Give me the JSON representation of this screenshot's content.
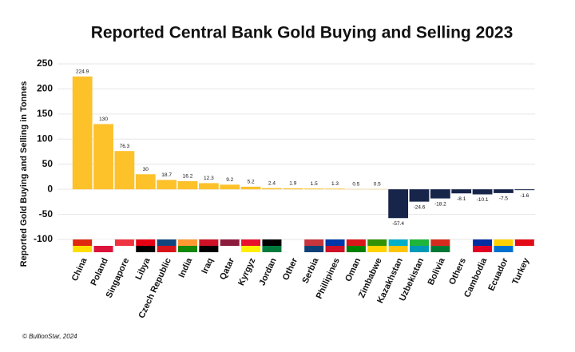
{
  "chart_data": {
    "type": "bar",
    "title": "Reported Central Bank Gold Buying and Selling 2023",
    "y_label": "Reported Gold Buying and Selling in Tonnes",
    "source": "© BullionStar, 2024",
    "categories": [
      "China",
      "Poland",
      "Singapore",
      "Libya",
      "Czech Republic",
      "India",
      "Iraq",
      "Qatar",
      "Kyrgyz",
      "Jordan",
      "Other",
      "Serbia",
      "Phillipines",
      "Oman",
      "Zimbabwe",
      "Kazakhstan",
      "Uzbekistan",
      "Bolivia",
      "Others",
      "Cambodia",
      "Ecuador",
      "Turkey"
    ],
    "values": [
      224.9,
      130,
      76.3,
      30,
      18.7,
      16.2,
      12.3,
      9.2,
      5.2,
      2.4,
      1.9,
      1.5,
      1.3,
      0.5,
      0.5,
      -57.4,
      -24.6,
      -18.2,
      -8.1,
      -10.1,
      -7.5,
      -1.6
    ],
    "positive_color": "#fdc12a",
    "negative_color": "#18254a",
    "ylim": [
      -120,
      250
    ],
    "yticks": [
      -100,
      -50,
      0,
      50,
      100,
      150,
      200,
      250
    ],
    "grid": true
  }
}
